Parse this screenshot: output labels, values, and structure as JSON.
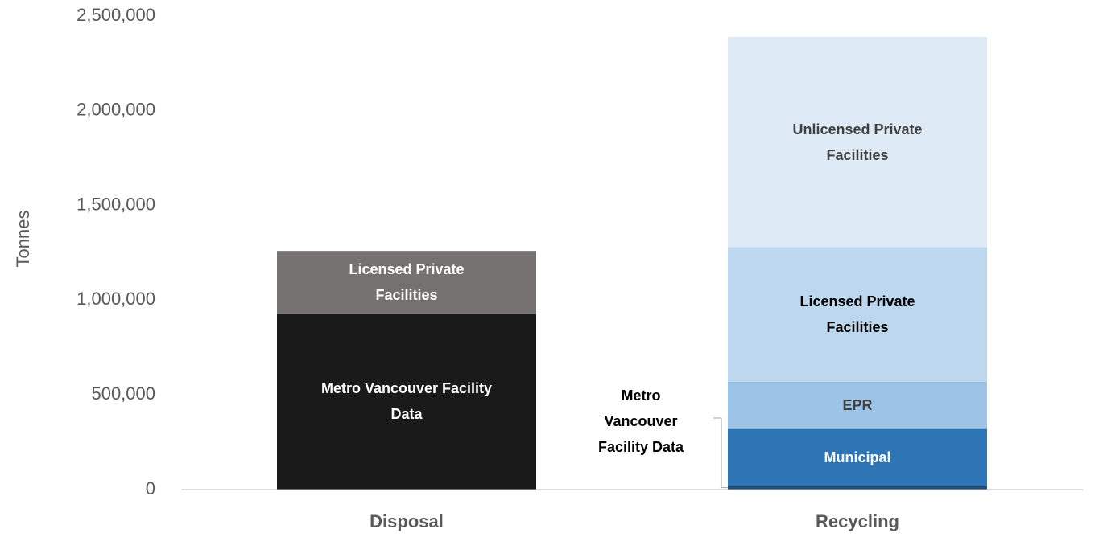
{
  "chart_data": {
    "type": "stacked_bar",
    "y_label": "Tonnes",
    "categories": [
      "Disposal",
      "Recycling"
    ],
    "ylim": [
      0,
      2500000
    ],
    "yticks": [
      0,
      {
        "value": 500000,
        "label": "500,000"
      },
      {
        "value": 1000000,
        "label": "1,000,000"
      },
      {
        "value": 1500000,
        "label": "1,500,000"
      },
      {
        "value": 2000000,
        "label": "2,000,000"
      },
      {
        "value": 2500000,
        "label": "2,500,000"
      }
    ],
    "grid": false,
    "series": [
      {
        "name": "Metro Vancouver Facility Data",
        "colors": [
          "#1a1a1a",
          "#1f4e79"
        ],
        "label_colors": [
          "#ffffff",
          "#000000"
        ],
        "values": [
          930000,
          20000
        ]
      },
      {
        "name": "Municipal",
        "colors": [
          null,
          "#2e75b6"
        ],
        "label_colors": [
          null,
          "#ffffff"
        ],
        "values": [
          null,
          300000
        ]
      },
      {
        "name": "EPR",
        "colors": [
          null,
          "#9dc3e6"
        ],
        "label_colors": [
          null,
          "#404040"
        ],
        "values": [
          null,
          250000
        ]
      },
      {
        "name": "Licensed Private Facilities",
        "colors": [
          "#767171",
          "#bdd7ee"
        ],
        "label_colors": [
          "#ffffff",
          "#000000"
        ],
        "values": [
          330000,
          710000
        ]
      },
      {
        "name": "Unlicensed Private Facilities",
        "colors": [
          null,
          "#deebf7"
        ],
        "label_colors": [
          null,
          "#404040"
        ],
        "values": [
          null,
          1110000
        ]
      }
    ]
  }
}
